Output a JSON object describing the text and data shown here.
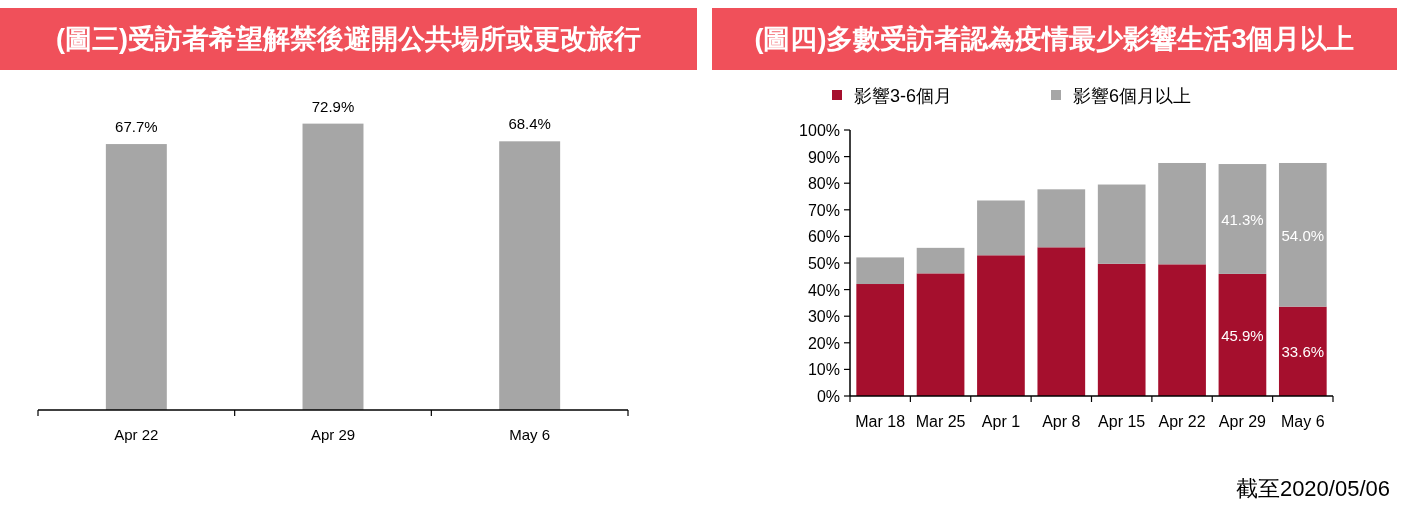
{
  "chart_data": [
    {
      "type": "bar",
      "title": "(圖三)受訪者希望解禁後避開公共場所或更改旅行",
      "categories": [
        "Apr 22",
        "Apr 29",
        "May 6"
      ],
      "values": [
        67.7,
        72.9,
        68.4
      ],
      "value_labels": [
        "67.7%",
        "72.9%",
        "68.4%"
      ],
      "color": "#a6a6a6",
      "grid": false,
      "legend": false
    },
    {
      "type": "bar",
      "title": "(圖四)多數受訪者認為疫情最少影響生活3個月以上",
      "stacked": true,
      "categories": [
        "Mar 18",
        "Mar 25",
        "Apr 1",
        "Apr 8",
        "Apr 15",
        "Apr 22",
        "Apr 29",
        "May 6"
      ],
      "series": [
        {
          "name": "影響3-6個月",
          "color": "#a50f2d",
          "values": [
            42.1,
            46.1,
            52.9,
            55.9,
            49.7,
            49.5,
            45.9,
            33.6
          ],
          "value_labels": [
            null,
            null,
            null,
            null,
            null,
            null,
            "45.9%",
            "33.6%"
          ]
        },
        {
          "name": "影響6個月以上",
          "color": "#a6a6a6",
          "values": [
            10.0,
            9.6,
            20.6,
            21.8,
            29.8,
            38.1,
            41.3,
            54.0
          ],
          "value_labels": [
            null,
            null,
            null,
            null,
            null,
            null,
            "41.3%",
            "54.0%"
          ]
        }
      ],
      "ylim": [
        0,
        100
      ],
      "yticks": [
        {
          "value": 0,
          "label": "0%"
        },
        {
          "value": 10,
          "label": "10%"
        },
        {
          "value": 20,
          "label": "20%"
        },
        {
          "value": 30,
          "label": "30%"
        },
        {
          "value": 40,
          "label": "40%"
        },
        {
          "value": 50,
          "label": "50%"
        },
        {
          "value": 60,
          "label": "60%"
        },
        {
          "value": 70,
          "label": "70%"
        },
        {
          "value": 80,
          "label": "80%"
        },
        {
          "value": 90,
          "label": "90%"
        },
        {
          "value": 100,
          "label": "100%"
        }
      ],
      "grid": false,
      "legend": "top",
      "annotations": [
        "截至2020/05/06"
      ]
    }
  ]
}
